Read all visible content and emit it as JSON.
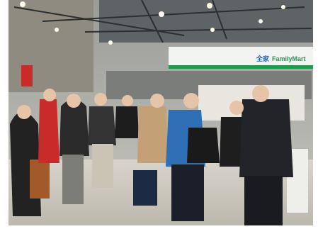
{
  "sign": {
    "brand_cn": "全家",
    "brand_en": "FamilyMart"
  }
}
